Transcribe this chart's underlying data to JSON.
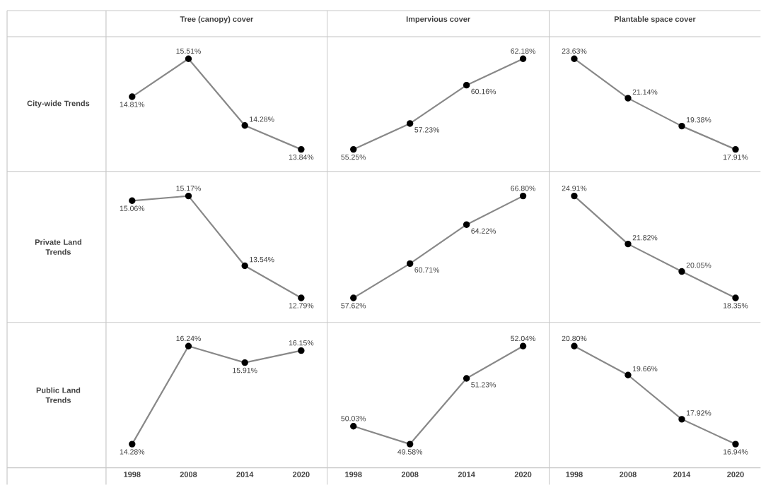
{
  "chart_data": [
    {
      "type": "line",
      "title": "Tree (canopy) cover",
      "ylabel": "City-wide Trends",
      "categories": [
        "1998",
        "2008",
        "2014",
        "2020"
      ],
      "tick_labels": false,
      "marker": "circle",
      "series": [
        {
          "color": "#888888",
          "values": [
            14.81,
            15.51,
            14.28,
            13.84
          ],
          "value_labels": [
            "14.81%",
            "15.51%",
            "14.28%",
            "13.84%"
          ]
        }
      ]
    },
    {
      "type": "line",
      "title": "Impervious cover",
      "categories": [
        "1998",
        "2008",
        "2014",
        "2020"
      ],
      "tick_labels": false,
      "marker": "circle",
      "series": [
        {
          "color": "#888888",
          "values": [
            55.25,
            57.23,
            60.16,
            62.18
          ],
          "value_labels": [
            "55.25%",
            "57.23%",
            "60.16%",
            "62.18%"
          ]
        }
      ]
    },
    {
      "type": "line",
      "title": "Plantable space cover",
      "categories": [
        "1998",
        "2008",
        "2014",
        "2020"
      ],
      "tick_labels": false,
      "marker": "circle",
      "series": [
        {
          "color": "#888888",
          "values": [
            23.63,
            21.14,
            19.38,
            17.91
          ],
          "value_labels": [
            "23.63%",
            "21.14%",
            "19.38%",
            "17.91%"
          ]
        }
      ]
    },
    {
      "type": "line",
      "ylabel": "Private Land Trends",
      "categories": [
        "1998",
        "2008",
        "2014",
        "2020"
      ],
      "tick_labels": false,
      "marker": "circle",
      "series": [
        {
          "color": "#888888",
          "values": [
            15.06,
            15.17,
            13.54,
            12.79
          ],
          "value_labels": [
            "15.06%",
            "15.17%",
            "13.54%",
            "12.79%"
          ]
        }
      ]
    },
    {
      "type": "line",
      "categories": [
        "1998",
        "2008",
        "2014",
        "2020"
      ],
      "tick_labels": false,
      "marker": "circle",
      "series": [
        {
          "color": "#888888",
          "values": [
            57.62,
            60.71,
            64.22,
            66.8
          ],
          "value_labels": [
            "57.62%",
            "60.71%",
            "64.22%",
            "66.80%"
          ]
        }
      ]
    },
    {
      "type": "line",
      "categories": [
        "1998",
        "2008",
        "2014",
        "2020"
      ],
      "tick_labels": false,
      "marker": "circle",
      "series": [
        {
          "color": "#888888",
          "values": [
            24.91,
            21.82,
            20.05,
            18.35
          ],
          "value_labels": [
            "24.91%",
            "21.82%",
            "20.05%",
            "18.35%"
          ]
        }
      ]
    },
    {
      "type": "line",
      "ylabel": "Public Land Trends",
      "categories": [
        "1998",
        "2008",
        "2014",
        "2020"
      ],
      "tick_labels": "x",
      "marker": "circle",
      "series": [
        {
          "color": "#888888",
          "values": [
            14.28,
            16.24,
            15.91,
            16.15
          ],
          "value_labels": [
            "14.28%",
            "16.24%",
            "15.91%",
            "16.15%"
          ]
        }
      ]
    },
    {
      "type": "line",
      "categories": [
        "1998",
        "2008",
        "2014",
        "2020"
      ],
      "tick_labels": "x",
      "marker": "circle",
      "series": [
        {
          "color": "#888888",
          "values": [
            50.03,
            49.58,
            51.23,
            52.04
          ],
          "value_labels": [
            "50.03%",
            "49.58%",
            "51.23%",
            "52.04%"
          ]
        }
      ]
    },
    {
      "type": "line",
      "categories": [
        "1998",
        "2008",
        "2014",
        "2020"
      ],
      "tick_labels": "x",
      "marker": "circle",
      "series": [
        {
          "color": "#888888",
          "values": [
            20.8,
            19.66,
            17.92,
            16.94
          ],
          "value_labels": [
            "20.80%",
            "19.66%",
            "17.92%",
            "16.94%"
          ]
        }
      ]
    }
  ]
}
